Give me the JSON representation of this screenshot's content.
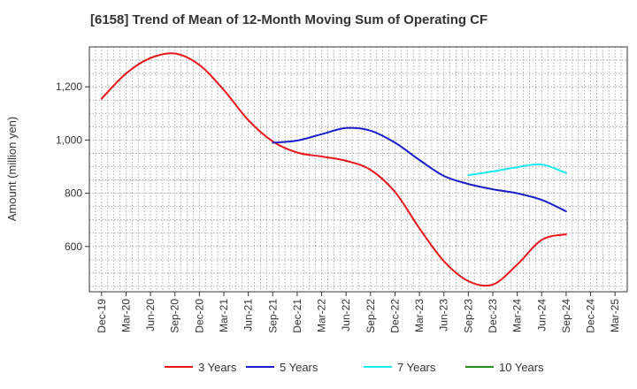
{
  "chart_data": {
    "type": "line",
    "title": "[6158]  Trend of Mean of 12-Month Moving Sum of Operating CF",
    "xlabel": "",
    "ylabel": "Amount (million yen)",
    "ylim": [
      430,
      1350
    ],
    "yticks": [
      600,
      800,
      1000,
      1200
    ],
    "ytick_labels": [
      "600",
      "800",
      "1,000",
      "1,200"
    ],
    "categories": [
      "Dec-19",
      "Mar-20",
      "Jun-20",
      "Sep-20",
      "Dec-20",
      "Mar-21",
      "Jun-21",
      "Sep-21",
      "Dec-21",
      "Mar-22",
      "Jun-22",
      "Sep-22",
      "Dec-22",
      "Mar-23",
      "Jun-23",
      "Sep-23",
      "Dec-23",
      "Mar-24",
      "Jun-24",
      "Sep-24",
      "Dec-24",
      "Mar-25"
    ],
    "grid": true,
    "legend_position": "bottom",
    "series": [
      {
        "name": "3 Years",
        "color": "#e8151b",
        "x": [
          0,
          1,
          2,
          3,
          4,
          5,
          6,
          7,
          8,
          9,
          10,
          11,
          12,
          13,
          14,
          15,
          16,
          17,
          18,
          19
        ],
        "values": [
          1155,
          1250,
          1308,
          1325,
          1282,
          1188,
          1075,
          995,
          953,
          938,
          922,
          888,
          805,
          668,
          545,
          470,
          457,
          532,
          625,
          646
        ]
      },
      {
        "name": "5 Years",
        "color": "#1a1ec8",
        "x": [
          7,
          8,
          9,
          10,
          11,
          12,
          13,
          14,
          15,
          16,
          17,
          18,
          19
        ],
        "values": [
          990,
          998,
          1022,
          1045,
          1035,
          990,
          925,
          865,
          835,
          815,
          800,
          775,
          732
        ]
      },
      {
        "name": "7 Years",
        "color": "#1ee8f0",
        "x": [
          15,
          16,
          17,
          18,
          19
        ],
        "values": [
          868,
          882,
          898,
          908,
          876
        ]
      },
      {
        "name": "10 Years",
        "color": "#1e8c1e",
        "x": [],
        "values": []
      }
    ]
  }
}
